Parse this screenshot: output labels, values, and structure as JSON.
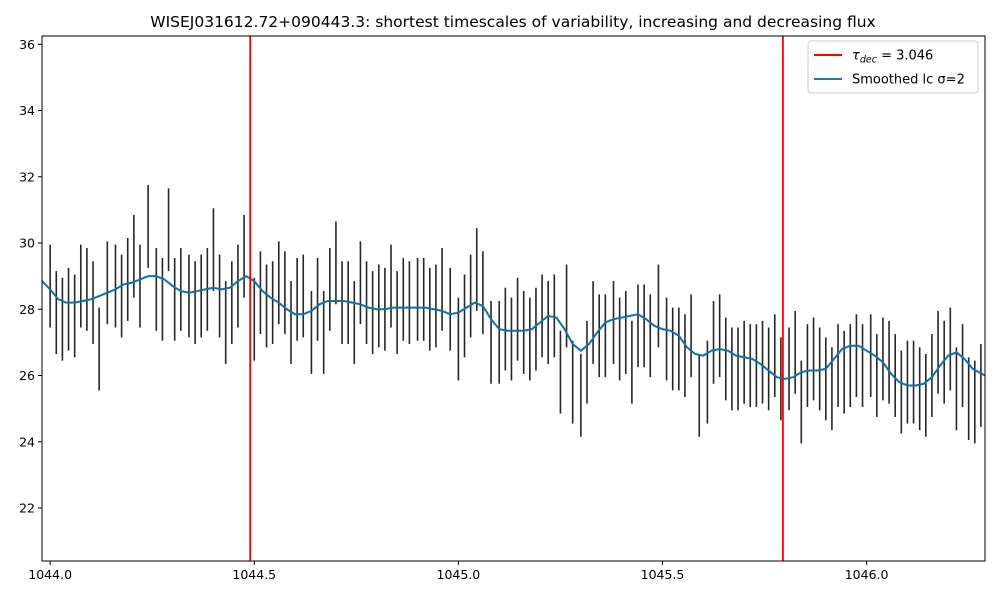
{
  "chart_data": {
    "type": "line",
    "title": "WISEJ031612.72+090443.3: shortest timescales of variability, increasing and decreasing flux",
    "xlabel": "",
    "ylabel": "",
    "xlim": [
      1043.98,
      1046.29
    ],
    "ylim": [
      20.4,
      36.25
    ],
    "x_ticks": [
      1044.0,
      1044.5,
      1045.0,
      1045.5,
      1046.0
    ],
    "x_tick_labels": [
      "1044.0",
      "1044.5",
      "1045.0",
      "1045.5",
      "1046.0"
    ],
    "y_ticks": [
      22,
      24,
      26,
      28,
      30,
      32,
      34,
      36
    ],
    "y_tick_labels": [
      "22",
      "24",
      "26",
      "28",
      "30",
      "32",
      "34",
      "36"
    ],
    "grid": false,
    "legend_position": "top-right",
    "legend": [
      {
        "label_main": "τ",
        "label_sub": "dec",
        "label_rest": " = 3.046",
        "color": "#ff0000"
      },
      {
        "label_main": "Smoothed lc σ=2",
        "label_sub": "",
        "label_rest": "",
        "color": "#1f77b4"
      }
    ],
    "vertical_lines": {
      "name": "τdec = 3.046",
      "color": "#ff0000",
      "x": [
        1044.49,
        1045.795
      ]
    },
    "series": [
      {
        "name": "Smoothed lc σ=2",
        "color": "#1170aa",
        "x": [
          1043.98,
          1044.0,
          1044.02,
          1044.04,
          1044.06,
          1044.08,
          1044.1,
          1044.12,
          1044.14,
          1044.16,
          1044.18,
          1044.2,
          1044.22,
          1044.24,
          1044.26,
          1044.28,
          1044.3,
          1044.32,
          1044.34,
          1044.36,
          1044.38,
          1044.4,
          1044.42,
          1044.44,
          1044.46,
          1044.48,
          1044.5,
          1044.52,
          1044.54,
          1044.56,
          1044.58,
          1044.6,
          1044.62,
          1044.64,
          1044.66,
          1044.68,
          1044.7,
          1044.72,
          1044.74,
          1044.76,
          1044.78,
          1044.8,
          1044.82,
          1044.84,
          1044.86,
          1044.88,
          1044.9,
          1044.92,
          1044.94,
          1044.96,
          1044.98,
          1045.0,
          1045.02,
          1045.04,
          1045.06,
          1045.08,
          1045.1,
          1045.12,
          1045.14,
          1045.16,
          1045.18,
          1045.2,
          1045.22,
          1045.24,
          1045.26,
          1045.28,
          1045.3,
          1045.32,
          1045.34,
          1045.36,
          1045.38,
          1045.4,
          1045.42,
          1045.44,
          1045.46,
          1045.48,
          1045.5,
          1045.52,
          1045.54,
          1045.56,
          1045.58,
          1045.6,
          1045.62,
          1045.64,
          1045.66,
          1045.68,
          1045.7,
          1045.72,
          1045.74,
          1045.76,
          1045.78,
          1045.8,
          1045.82,
          1045.84,
          1045.86,
          1045.88,
          1045.9,
          1045.92,
          1045.94,
          1045.96,
          1045.98,
          1046.0,
          1046.02,
          1046.04,
          1046.06,
          1046.08,
          1046.1,
          1046.12,
          1046.14,
          1046.16,
          1046.18,
          1046.2,
          1046.22,
          1046.24,
          1046.26,
          1046.29
        ],
        "y": [
          28.85,
          28.6,
          28.3,
          28.2,
          28.2,
          28.25,
          28.3,
          28.4,
          28.5,
          28.6,
          28.75,
          28.8,
          28.9,
          29.0,
          29.0,
          28.9,
          28.7,
          28.55,
          28.5,
          28.55,
          28.6,
          28.65,
          28.6,
          28.65,
          28.85,
          29.0,
          28.85,
          28.55,
          28.35,
          28.2,
          28.0,
          27.85,
          27.85,
          27.95,
          28.15,
          28.25,
          28.25,
          28.25,
          28.2,
          28.15,
          28.05,
          28.0,
          28.0,
          28.05,
          28.05,
          28.05,
          28.05,
          28.05,
          28.0,
          27.95,
          27.85,
          27.9,
          28.05,
          28.2,
          28.1,
          27.7,
          27.4,
          27.35,
          27.35,
          27.35,
          27.4,
          27.6,
          27.8,
          27.75,
          27.4,
          26.95,
          26.75,
          26.95,
          27.3,
          27.6,
          27.7,
          27.75,
          27.8,
          27.85,
          27.7,
          27.5,
          27.4,
          27.35,
          27.2,
          26.85,
          26.65,
          26.6,
          26.75,
          26.8,
          26.75,
          26.6,
          26.55,
          26.5,
          26.35,
          26.15,
          25.95,
          25.9,
          25.95,
          26.1,
          26.15,
          26.15,
          26.2,
          26.5,
          26.8,
          26.9,
          26.9,
          26.75,
          26.6,
          26.4,
          26.05,
          25.8,
          25.7,
          25.7,
          25.75,
          25.95,
          26.3,
          26.6,
          26.7,
          26.5,
          26.2,
          26.0
        ]
      }
    ],
    "errorbars": {
      "color": "#262626",
      "x": [
        1044.0,
        1044.015,
        1044.03,
        1044.045,
        1044.06,
        1044.075,
        1044.09,
        1044.105,
        1044.12,
        1044.14,
        1044.16,
        1044.175,
        1044.19,
        1044.205,
        1044.22,
        1044.24,
        1044.26,
        1044.275,
        1044.29,
        1044.305,
        1044.32,
        1044.34,
        1044.355,
        1044.37,
        1044.385,
        1044.4,
        1044.415,
        1044.43,
        1044.445,
        1044.46,
        1044.475,
        1044.5,
        1044.515,
        1044.53,
        1044.545,
        1044.56,
        1044.575,
        1044.59,
        1044.605,
        1044.62,
        1044.64,
        1044.655,
        1044.67,
        1044.685,
        1044.7,
        1044.715,
        1044.73,
        1044.745,
        1044.76,
        1044.775,
        1044.79,
        1044.805,
        1044.82,
        1044.835,
        1044.85,
        1044.865,
        1044.88,
        1044.9,
        1044.915,
        1044.93,
        1044.945,
        1044.96,
        1044.98,
        1045.0,
        1045.015,
        1045.03,
        1045.045,
        1045.06,
        1045.08,
        1045.1,
        1045.115,
        1045.13,
        1045.145,
        1045.16,
        1045.175,
        1045.19,
        1045.205,
        1045.22,
        1045.235,
        1045.25,
        1045.265,
        1045.28,
        1045.3,
        1045.315,
        1045.33,
        1045.345,
        1045.36,
        1045.38,
        1045.395,
        1045.41,
        1045.425,
        1045.44,
        1045.455,
        1045.47,
        1045.49,
        1045.51,
        1045.525,
        1045.54,
        1045.555,
        1045.57,
        1045.59,
        1045.61,
        1045.625,
        1045.64,
        1045.655,
        1045.67,
        1045.685,
        1045.7,
        1045.715,
        1045.73,
        1045.745,
        1045.76,
        1045.775,
        1045.79,
        1045.81,
        1045.825,
        1045.84,
        1045.855,
        1045.87,
        1045.885,
        1045.9,
        1045.915,
        1045.93,
        1045.945,
        1045.96,
        1045.975,
        1045.99,
        1046.01,
        1046.025,
        1046.04,
        1046.055,
        1046.07,
        1046.085,
        1046.1,
        1046.115,
        1046.13,
        1046.145,
        1046.16,
        1046.175,
        1046.19,
        1046.205,
        1046.22,
        1046.235,
        1046.25,
        1046.265,
        1046.28
      ],
      "y": [
        28.7,
        27.9,
        27.7,
        28.0,
        27.8,
        28.7,
        28.6,
        28.2,
        26.8,
        28.8,
        28.7,
        28.4,
        28.9,
        29.6,
        28.7,
        30.5,
        28.6,
        28.3,
        30.4,
        28.3,
        28.6,
        28.4,
        28.2,
        28.4,
        28.6,
        29.8,
        28.4,
        27.6,
        28.2,
        28.7,
        29.6,
        27.7,
        28.5,
        28.1,
        28.2,
        28.8,
        28.5,
        27.6,
        28.3,
        28.4,
        27.3,
        28.3,
        27.3,
        28.6,
        29.4,
        28.2,
        28.2,
        27.6,
        28.8,
        28.2,
        27.9,
        28.1,
        28.0,
        28.7,
        27.9,
        28.3,
        28.2,
        28.3,
        28.3,
        28.0,
        28.1,
        28.6,
        28.0,
        27.1,
        27.8,
        28.4,
        29.2,
        28.5,
        27.0,
        27.0,
        27.4,
        27.1,
        27.7,
        27.3,
        27.1,
        27.4,
        27.8,
        27.6,
        27.8,
        26.1,
        28.1,
        25.8,
        25.4,
        26.4,
        27.6,
        27.2,
        27.2,
        27.6,
        27.1,
        27.3,
        26.4,
        27.5,
        27.5,
        27.2,
        28.1,
        27.1,
        26.8,
        26.8,
        26.6,
        27.2,
        25.4,
        25.8,
        27.0,
        27.2,
        26.5,
        26.2,
        26.2,
        26.4,
        26.3,
        26.3,
        26.4,
        26.2,
        26.6,
        25.9,
        26.2,
        26.7,
        25.2,
        26.3,
        26.5,
        26.2,
        25.9,
        25.6,
        26.3,
        26.1,
        26.3,
        26.6,
        26.3,
        26.6,
        26.0,
        26.5,
        26.4,
        26.0,
        25.5,
        25.8,
        25.8,
        25.6,
        25.4,
        26.0,
        26.7,
        26.4,
        26.8,
        25.6,
        26.3,
        25.3,
        25.2,
        25.7
      ]
    }
  }
}
